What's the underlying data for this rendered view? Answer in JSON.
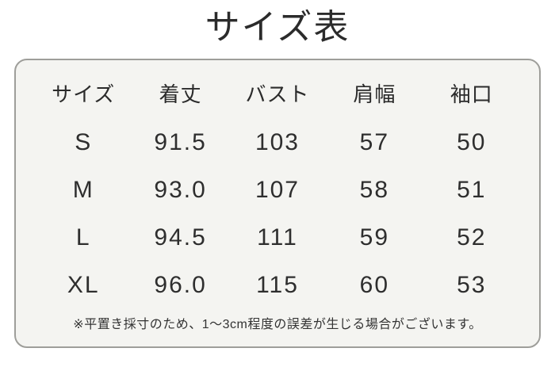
{
  "page": {
    "title": "サイズ表"
  },
  "colors": {
    "page_background": "#ffffff",
    "panel_background": "#f4f4f1",
    "panel_border": "#9e9e9a",
    "text": "#2e2e2e"
  },
  "chart_data": {
    "type": "table",
    "title": "サイズ表",
    "columns": [
      "サイズ",
      "着丈",
      "バスト",
      "肩幅",
      "袖口"
    ],
    "rows": [
      [
        "S",
        "91.5",
        "103",
        "57",
        "50"
      ],
      [
        "M",
        "93.0",
        "107",
        "58",
        "51"
      ],
      [
        "L",
        "94.5",
        "111",
        "59",
        "52"
      ],
      [
        "XL",
        "96.0",
        "115",
        "60",
        "53"
      ]
    ],
    "note": "※平置き採寸のため、1〜3cm程度の誤差が生じる場合がございます。"
  }
}
